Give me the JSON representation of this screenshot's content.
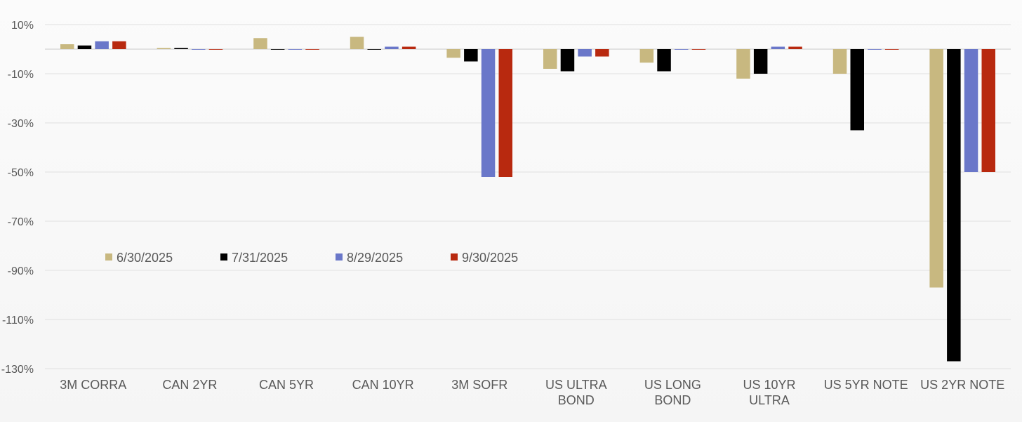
{
  "chart_data": {
    "type": "bar",
    "categories": [
      [
        "3M CORRA"
      ],
      [
        "CAN 2YR"
      ],
      [
        "CAN 5YR"
      ],
      [
        "CAN 10YR"
      ],
      [
        "3M SOFR"
      ],
      [
        "US ULTRA",
        "BOND"
      ],
      [
        "US LONG",
        "BOND"
      ],
      [
        "US 10YR",
        "ULTRA"
      ],
      [
        "US 5YR NOTE"
      ],
      [
        "US 2YR NOTE"
      ]
    ],
    "series": [
      {
        "name": "6/30/2025",
        "color": "#c8b880",
        "values": [
          2,
          0.5,
          4.5,
          5,
          -3.5,
          -8,
          -5.5,
          -12,
          -10,
          -97
        ]
      },
      {
        "name": "7/31/2025",
        "color": "#000000",
        "values": [
          1.5,
          0.5,
          0,
          0,
          -5,
          -9,
          -9,
          -10,
          -33,
          -127
        ]
      },
      {
        "name": "8/29/2025",
        "color": "#6a77c9",
        "values": [
          3.2,
          0,
          0,
          1,
          -52,
          -3,
          0,
          1,
          0,
          -50
        ]
      },
      {
        "name": "9/30/2025",
        "color": "#b8290f",
        "values": [
          3.2,
          0,
          0,
          1,
          -52,
          -3,
          0,
          1,
          0,
          -50
        ]
      }
    ],
    "yticks": [
      "10%",
      "-10%",
      "-30%",
      "-50%",
      "-70%",
      "-90%",
      "-110%",
      "-130%"
    ],
    "ytick_values": [
      10,
      -10,
      -30,
      -50,
      -70,
      -90,
      -110,
      -130
    ],
    "ylim": [
      -130,
      10
    ],
    "grid": true,
    "legend": "middle-left",
    "title": "",
    "xlabel": "",
    "ylabel": ""
  }
}
